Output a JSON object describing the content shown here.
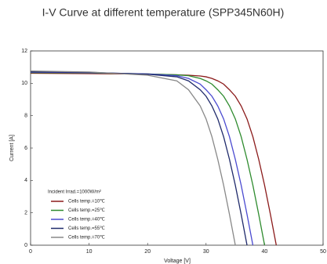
{
  "chart_data": {
    "type": "line",
    "title": "I-V Curve at different temperature (SPP345N60H)",
    "x_label": "Voltage [V]",
    "y_label": "Current [A]",
    "legend_title": "Incident Irrad.=1000W/m²",
    "x": [
      0,
      10,
      20,
      25,
      27,
      29,
      30,
      31,
      32,
      33,
      34,
      35,
      36,
      37,
      38,
      39,
      40,
      41,
      42
    ],
    "series": [
      {
        "name": "Cells temp.=10℃",
        "color": "#8b1a1a",
        "values": [
          10.62,
          10.6,
          10.57,
          10.52,
          10.5,
          10.45,
          10.4,
          10.3,
          10.15,
          9.95,
          9.6,
          9.2,
          8.6,
          7.8,
          6.7,
          5.3,
          3.7,
          1.9,
          0
        ]
      },
      {
        "name": "Cells temp.=25℃",
        "color": "#2e8b2e",
        "values": [
          10.66,
          10.64,
          10.58,
          10.52,
          10.47,
          10.3,
          10.15,
          9.95,
          9.6,
          9.2,
          8.6,
          7.8,
          6.7,
          5.3,
          3.7,
          1.9,
          0,
          null,
          null
        ]
      },
      {
        "name": "Cells temp.=40℃",
        "color": "#4a4ad0",
        "values": [
          10.69,
          10.66,
          10.58,
          10.47,
          10.3,
          9.95,
          9.6,
          9.2,
          8.6,
          7.8,
          6.7,
          5.3,
          3.7,
          1.9,
          0,
          null,
          null,
          null,
          null
        ]
      },
      {
        "name": "Cells temp.=55℃",
        "color": "#1f2a6b",
        "values": [
          10.72,
          10.68,
          10.56,
          10.4,
          10.15,
          9.6,
          9.2,
          8.6,
          7.8,
          6.7,
          5.3,
          3.7,
          1.9,
          0,
          null,
          null,
          null,
          null,
          null
        ]
      },
      {
        "name": "Cells temp.=70℃",
        "color": "#888888",
        "values": [
          10.76,
          10.7,
          10.5,
          10.15,
          9.6,
          8.6,
          7.8,
          6.7,
          5.3,
          3.7,
          1.9,
          0,
          null,
          null,
          null,
          null,
          null,
          null,
          null
        ]
      }
    ],
    "xlim": [
      0,
      50
    ],
    "ylim": [
      0,
      12
    ],
    "xticks": [
      0,
      10,
      20,
      30,
      40,
      50
    ],
    "yticks": [
      0,
      2,
      4,
      6,
      8,
      10,
      12
    ],
    "legend": "lower left"
  }
}
